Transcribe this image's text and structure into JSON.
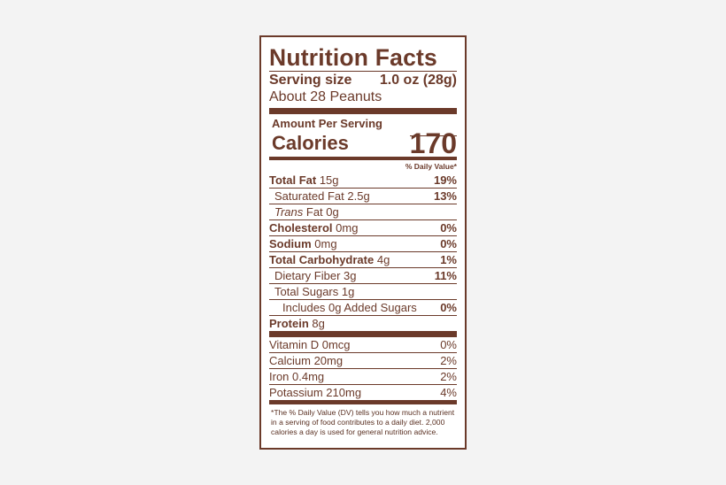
{
  "title": "Nutrition Facts",
  "serving": {
    "label": "Serving size",
    "value": "1.0 oz (28g)",
    "per_container": "About 28 Peanuts"
  },
  "amount_per_serving": "Amount Per Serving",
  "calories": {
    "label": "Calories",
    "value": 170
  },
  "daily_value_header": "% Daily Value*",
  "nutrients": [
    {
      "name": "Total Fat",
      "amount": "15g",
      "dv": "19%"
    },
    {
      "name": "Saturated Fat 2.5g",
      "dv": "13%"
    },
    {
      "name": "Trans",
      "amount": "Fat 0g"
    },
    {
      "name": "Cholesterol",
      "amount": "0mg",
      "dv": "0%"
    },
    {
      "name": "Sodium",
      "amount": "0mg",
      "dv": "0%"
    },
    {
      "name": "Total Carbohydrate",
      "amount": "4g",
      "dv": "1%"
    },
    {
      "name": "Dietary Fiber 3g",
      "dv": "11%"
    },
    {
      "name": "Total Sugars 1g"
    },
    {
      "name": "Includes 0g Added Sugars",
      "dv": "0%"
    },
    {
      "name": "Protein",
      "amount": "8g"
    }
  ],
  "vitamins": [
    {
      "name": "Vitamin D 0mcg",
      "dv": "0%"
    },
    {
      "name": "Calcium 20mg",
      "dv": "2%"
    },
    {
      "name": "Iron 0.4mg",
      "dv": "2%"
    },
    {
      "name": "Potassium 210mg",
      "dv": "4%"
    }
  ],
  "footnote": "*The % Daily Value (DV) tells you how much a nutrient in a serving of food contributes to a daily diet. 2,000 calories a day is used for general nutrition advice."
}
